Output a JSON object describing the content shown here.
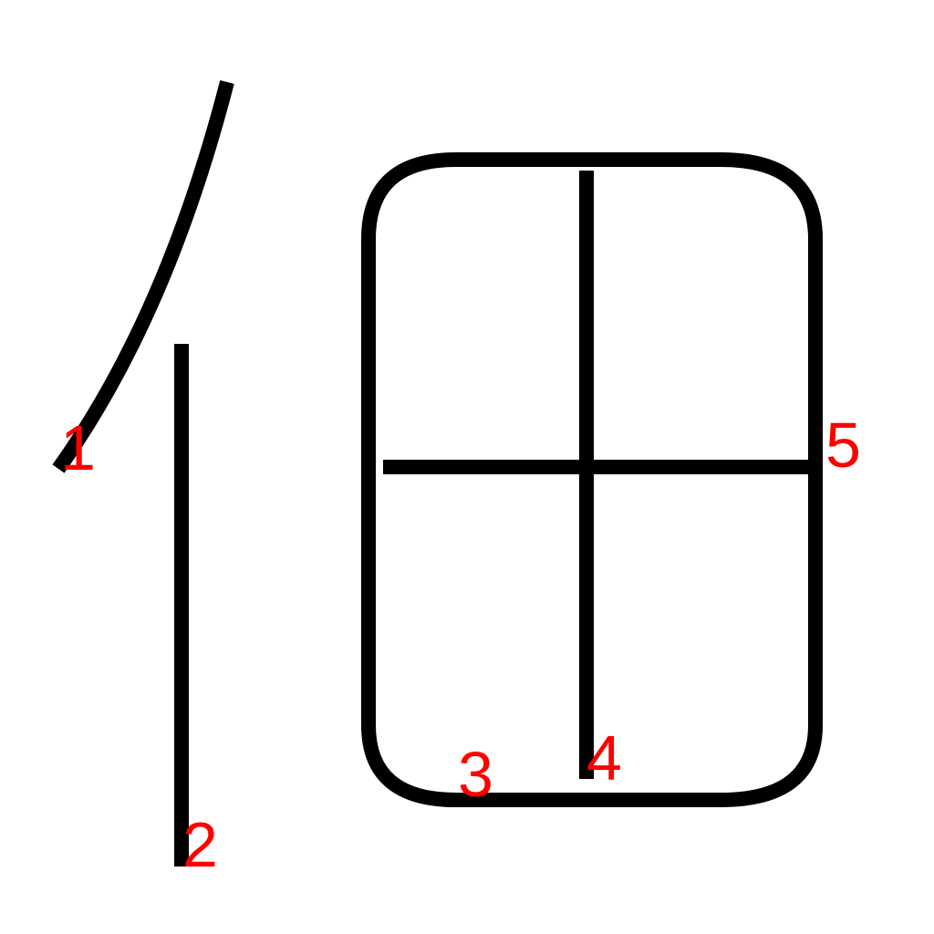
{
  "character": {
    "stroke_color": "#000000",
    "strokes": [
      {
        "order": "1",
        "kind": "left-falling curve"
      },
      {
        "order": "2",
        "kind": "vertical"
      },
      {
        "order": "3",
        "kind": "enclosing box"
      },
      {
        "order": "4",
        "kind": "vertical"
      },
      {
        "order": "5",
        "kind": "horizontal"
      }
    ]
  },
  "labels": {
    "color": "#ff0000",
    "items": [
      "1",
      "2",
      "3",
      "4",
      "5"
    ]
  }
}
